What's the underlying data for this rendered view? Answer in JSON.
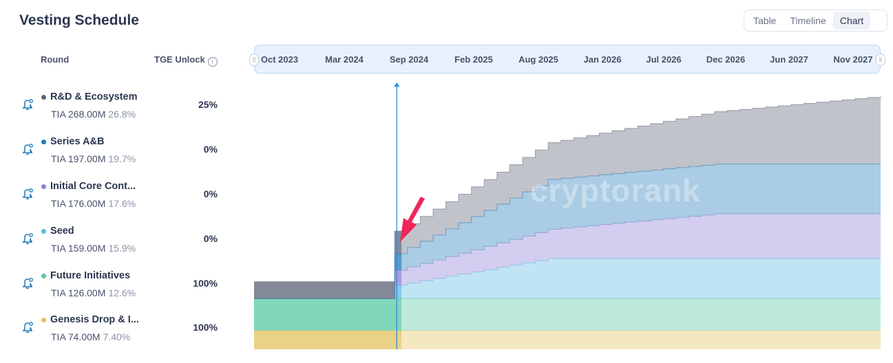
{
  "header": {
    "title": "Vesting Schedule",
    "views": [
      {
        "label": "Table",
        "active": false
      },
      {
        "label": "Timeline",
        "active": false
      },
      {
        "label": "Chart",
        "active": true
      }
    ]
  },
  "table": {
    "col_round": "Round",
    "col_tge": "TGE Unlock",
    "info_glyph": "i",
    "rows": [
      {
        "name": "R&D & Ecosystem",
        "amount": "TIA 268.00M",
        "percent": "26.8%",
        "tge": "25%",
        "color": "#5b6275"
      },
      {
        "name": "Series A&B",
        "amount": "TIA 197.00M",
        "percent": "19.7%",
        "tge": "0%",
        "color": "#1f7ab8"
      },
      {
        "name": "Initial Core Cont...",
        "amount": "TIA 176.00M",
        "percent": "17.6%",
        "tge": "0%",
        "color": "#8b7fd4"
      },
      {
        "name": "Seed",
        "amount": "TIA 159.00M",
        "percent": "15.9%",
        "tge": "0%",
        "color": "#5bb8e6"
      },
      {
        "name": "Future Initiatives",
        "amount": "TIA 126.00M",
        "percent": "12.6%",
        "tge": "100%",
        "color": "#55c9a6"
      },
      {
        "name": "Genesis Drop & I...",
        "amount": "TIA 74.00M",
        "percent": "7.40%",
        "tge": "100%",
        "color": "#e2c25c"
      }
    ]
  },
  "watermark": "cryptorank",
  "chart_data": {
    "type": "area",
    "x_axis": {
      "tick_labels": [
        "Oct 2023",
        "Mar 2024",
        "Sep 2024",
        "Feb 2025",
        "Aug 2025",
        "Jan 2026",
        "Jul 2026",
        "Dec 2026",
        "Jun 2027",
        "Nov 2027"
      ],
      "range": [
        "2023-10",
        "2027-11"
      ]
    },
    "current_date_marker": "2024-09",
    "stacked": true,
    "series": [
      {
        "name": "Genesis Drop & I...",
        "color": "#e2c25c",
        "total_pct": 7.4,
        "points": [
          [
            "2023-10",
            7.4
          ],
          [
            "2027-11",
            7.4
          ]
        ]
      },
      {
        "name": "Future Initiatives",
        "color": "#55c9a6",
        "total_pct": 12.6,
        "points": [
          [
            "2023-10",
            12.6
          ],
          [
            "2027-11",
            12.6
          ]
        ]
      },
      {
        "name": "Seed",
        "color": "#5bb8e6",
        "total_pct": 15.9,
        "points": [
          [
            "2024-08",
            0
          ],
          [
            "2024-09",
            5.3
          ],
          [
            "2025-09",
            15.9
          ],
          [
            "2027-11",
            15.9
          ]
        ]
      },
      {
        "name": "Initial Core Cont...",
        "color": "#8b7fd4",
        "total_pct": 17.6,
        "points": [
          [
            "2024-08",
            0
          ],
          [
            "2024-09",
            5.9
          ],
          [
            "2026-10",
            17.6
          ],
          [
            "2027-11",
            17.6
          ]
        ]
      },
      {
        "name": "Series A&B",
        "color": "#1f7ab8",
        "total_pct": 19.7,
        "points": [
          [
            "2024-08",
            0
          ],
          [
            "2024-09",
            6.6
          ],
          [
            "2025-09",
            19.7
          ],
          [
            "2027-11",
            19.7
          ]
        ]
      },
      {
        "name": "R&D & Ecosystem",
        "color": "#5b6275",
        "total_pct": 26.8,
        "points": [
          [
            "2023-10",
            6.7
          ],
          [
            "2024-08",
            6.7
          ],
          [
            "2024-09",
            8.9
          ],
          [
            "2027-11",
            26.8
          ]
        ]
      }
    ]
  }
}
